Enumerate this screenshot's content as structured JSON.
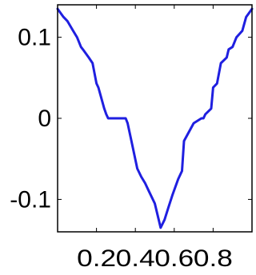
{
  "chart_data": {
    "type": "line",
    "title": "",
    "xlabel": "",
    "ylabel": "",
    "xlim": [
      0.0,
      1.0
    ],
    "ylim": [
      -0.14,
      0.14
    ],
    "grid": false,
    "x_ticks": [
      0.2,
      0.4,
      0.6,
      0.8
    ],
    "x_tick_labels": [
      "0.2",
      "0.4",
      "0.6",
      "0.8"
    ],
    "y_ticks": [
      0.1,
      0.0,
      -0.1
    ],
    "y_tick_labels": [
      "0.1",
      "0",
      "-0.1"
    ],
    "series": [
      {
        "color": "#1f1fe0",
        "x": [
          0.0,
          0.03,
          0.05,
          0.08,
          0.1,
          0.12,
          0.13,
          0.16,
          0.18,
          0.2,
          0.21,
          0.24,
          0.25,
          0.26,
          0.3,
          0.35,
          0.36,
          0.38,
          0.41,
          0.43,
          0.45,
          0.47,
          0.5,
          0.53,
          0.55,
          0.57,
          0.59,
          0.62,
          0.64,
          0.65,
          0.7,
          0.74,
          0.75,
          0.76,
          0.79,
          0.8,
          0.82,
          0.84,
          0.87,
          0.88,
          0.9,
          0.92,
          0.95,
          0.97,
          1.0
        ],
        "y": [
          0.135,
          0.125,
          0.12,
          0.108,
          0.1,
          0.088,
          0.085,
          0.075,
          0.068,
          0.043,
          0.038,
          0.012,
          0.005,
          0.0,
          0.0,
          0.0,
          -0.006,
          -0.028,
          -0.062,
          -0.072,
          -0.08,
          -0.09,
          -0.105,
          -0.135,
          -0.125,
          -0.11,
          -0.095,
          -0.075,
          -0.065,
          -0.028,
          -0.006,
          0.0,
          0.0,
          0.005,
          0.012,
          0.038,
          0.043,
          0.068,
          0.075,
          0.085,
          0.088,
          0.1,
          0.108,
          0.125,
          0.135
        ]
      }
    ]
  }
}
